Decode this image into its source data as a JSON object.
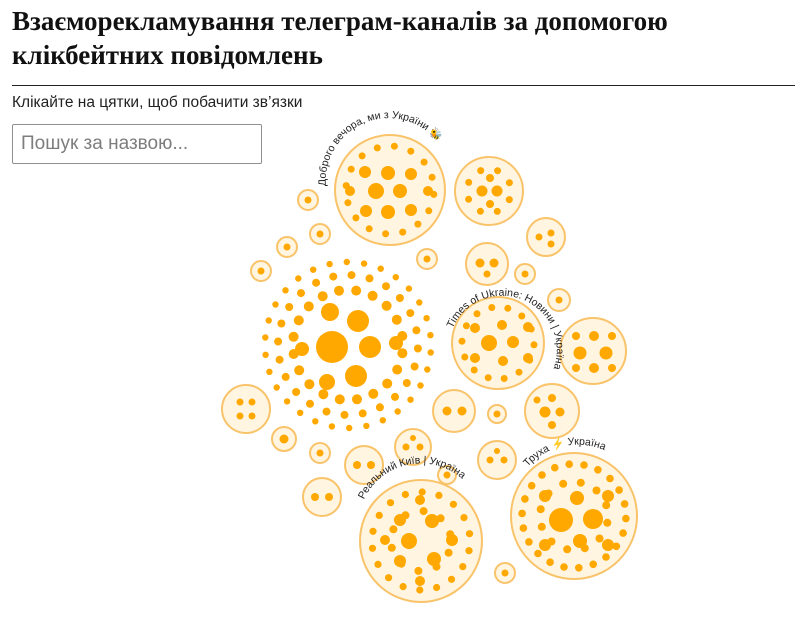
{
  "header": {
    "title": "Взаєморекламування телеграм-каналів за допомогою клікбейтних повідомлень",
    "hint": "Клікайте на цятки, щоб побачити зв’язки"
  },
  "search": {
    "placeholder": "Пошук за назвою..."
  },
  "colors": {
    "dot": "#FFA800",
    "ring": "#F9C36A",
    "fill": "#FFF5E1",
    "rule": "#222222"
  },
  "channels": [
    {
      "label": "Доброго вечора, ми з України 🐝"
    },
    {
      "label": "Times of Ukraine: Новини | Україна"
    },
    {
      "label": "Реальний Київ | Україна"
    },
    {
      "label": "Труха ⚡ Україна"
    }
  ]
}
